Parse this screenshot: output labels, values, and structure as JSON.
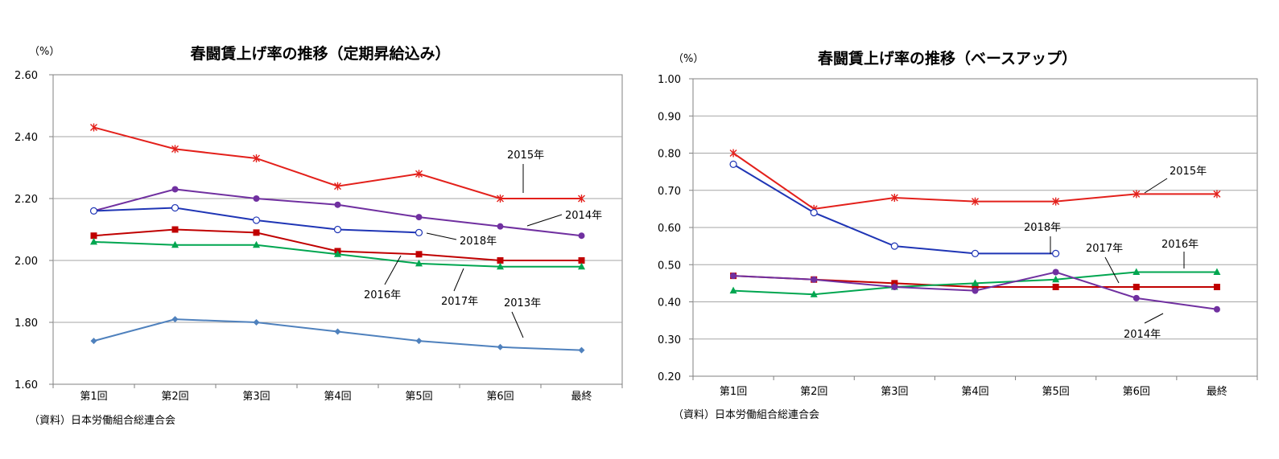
{
  "colors": {
    "2013": "#4f81bd",
    "2014": "#7030a0",
    "2015": "#e3201b",
    "2016": "#c00000",
    "2017": "#00a650",
    "2018": "#1f35b5",
    "grid": "#a6a6a6",
    "axis": "#808080"
  },
  "chart_data": [
    {
      "type": "line",
      "title": "春闘賃上げ率の推移（定期昇給込み）",
      "ylabel": "（%）",
      "source": "（資料）日本労働組合総連合会",
      "categories": [
        "第1回",
        "第2回",
        "第3回",
        "第4回",
        "第5回",
        "第6回",
        "最終"
      ],
      "ylim": [
        1.6,
        2.6
      ],
      "ytick_labels": [
        "1.60",
        "1.80",
        "2.00",
        "2.20",
        "2.40",
        "2.60"
      ],
      "yticks": [
        1.6,
        1.8,
        2.0,
        2.2,
        2.4,
        2.6
      ],
      "grid": true,
      "series": [
        {
          "name": "2015年",
          "key": "2015",
          "marker": "star",
          "values": [
            2.43,
            2.36,
            2.33,
            2.24,
            2.28,
            2.2,
            2.2
          ]
        },
        {
          "name": "2014年",
          "key": "2014",
          "marker": "circle",
          "values": [
            2.16,
            2.23,
            2.2,
            2.18,
            2.14,
            2.11,
            2.08
          ]
        },
        {
          "name": "2018年",
          "key": "2018",
          "marker": "open-circle",
          "values": [
            2.16,
            2.17,
            2.13,
            2.1,
            2.09,
            null,
            null
          ]
        },
        {
          "name": "2016年",
          "key": "2016",
          "marker": "square",
          "values": [
            2.08,
            2.1,
            2.09,
            2.03,
            2.02,
            2.0,
            2.0
          ]
        },
        {
          "name": "2017年",
          "key": "2017",
          "marker": "triangle",
          "values": [
            2.06,
            2.05,
            2.05,
            2.02,
            1.99,
            1.98,
            1.98
          ]
        },
        {
          "name": "2013年",
          "key": "2013",
          "marker": "diamond",
          "values": [
            1.74,
            1.81,
            1.8,
            1.77,
            1.74,
            1.72,
            1.71
          ]
        }
      ]
    },
    {
      "type": "line",
      "title": "春闘賃上げ率の推移（ベースアップ）",
      "ylabel": "（%）",
      "source": "（資料）日本労働組合総連合会",
      "categories": [
        "第1回",
        "第2回",
        "第3回",
        "第4回",
        "第5回",
        "第6回",
        "最終"
      ],
      "ylim": [
        0.2,
        1.0
      ],
      "ytick_labels": [
        "0.20",
        "0.30",
        "0.40",
        "0.50",
        "0.60",
        "0.70",
        "0.80",
        "0.90",
        "1.00"
      ],
      "yticks": [
        0.2,
        0.3,
        0.4,
        0.5,
        0.6,
        0.7,
        0.8,
        0.9,
        1.0
      ],
      "grid": true,
      "series": [
        {
          "name": "2015年",
          "key": "2015",
          "marker": "star",
          "values": [
            0.8,
            0.65,
            0.68,
            0.67,
            0.67,
            0.69,
            0.69
          ]
        },
        {
          "name": "2018年",
          "key": "2018",
          "marker": "open-circle",
          "values": [
            0.77,
            0.64,
            0.55,
            0.53,
            0.53,
            null,
            null
          ]
        },
        {
          "name": "2016年",
          "key": "2016",
          "marker": "square",
          "values": [
            0.47,
            0.46,
            0.45,
            0.44,
            0.44,
            0.44,
            0.44
          ]
        },
        {
          "name": "2017年",
          "key": "2017",
          "marker": "triangle",
          "values": [
            0.43,
            0.42,
            0.44,
            0.45,
            0.46,
            0.48,
            0.48
          ]
        },
        {
          "name": "2014年",
          "key": "2014",
          "marker": "circle",
          "values": [
            0.47,
            0.46,
            0.44,
            0.43,
            0.48,
            0.41,
            0.38
          ]
        }
      ]
    }
  ]
}
